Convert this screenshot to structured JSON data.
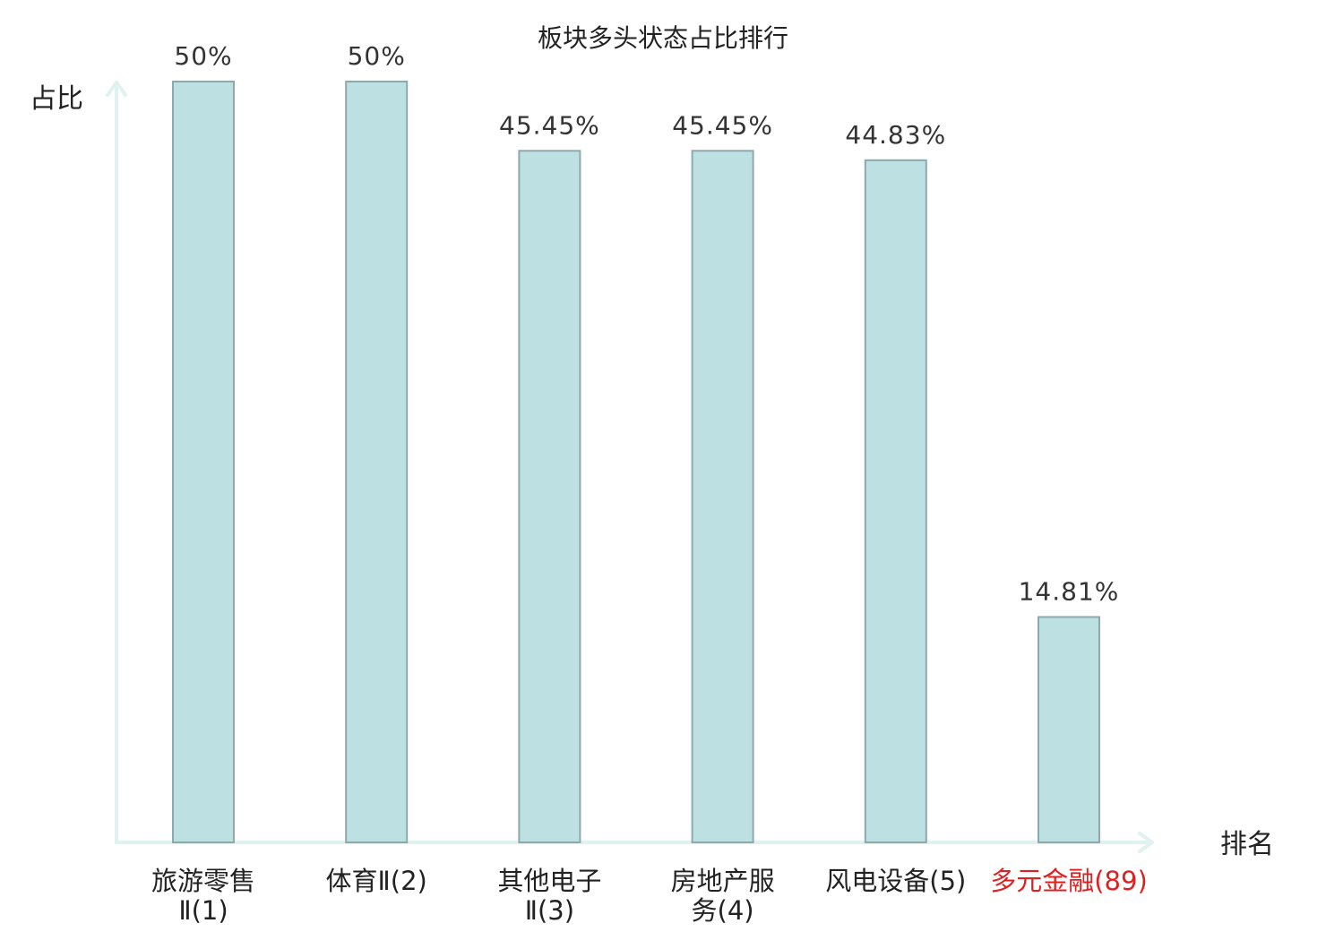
{
  "chart_data": {
    "type": "bar",
    "title": "板块多头状态占比排行",
    "xlabel": "排名",
    "ylabel": "占比",
    "ylim": [
      0,
      50
    ],
    "grid": false,
    "legend": "none",
    "categories": [
      {
        "lines": [
          "旅游零售",
          "Ⅱ(1)"
        ],
        "highlight": false
      },
      {
        "lines": [
          "体育Ⅱ(2)"
        ],
        "highlight": false
      },
      {
        "lines": [
          "其他电子",
          "Ⅱ(3)"
        ],
        "highlight": false
      },
      {
        "lines": [
          "房地产服",
          "务(4)"
        ],
        "highlight": false
      },
      {
        "lines": [
          "风电设备(5)"
        ],
        "highlight": false
      },
      {
        "lines": [
          "多元金融(89)"
        ],
        "highlight": true
      }
    ],
    "values": [
      50,
      50,
      45.45,
      45.45,
      44.83,
      14.81
    ],
    "value_labels": [
      "50%",
      "50%",
      "45.45%",
      "45.45%",
      "44.83%",
      "14.81%"
    ],
    "colors": {
      "bar_fill": "#bde0e3",
      "bar_stroke": "#8fa8ab",
      "axis": "#dff2ef",
      "text": "#222222",
      "value_text": "#333333",
      "highlight_text": "#e02020"
    }
  }
}
